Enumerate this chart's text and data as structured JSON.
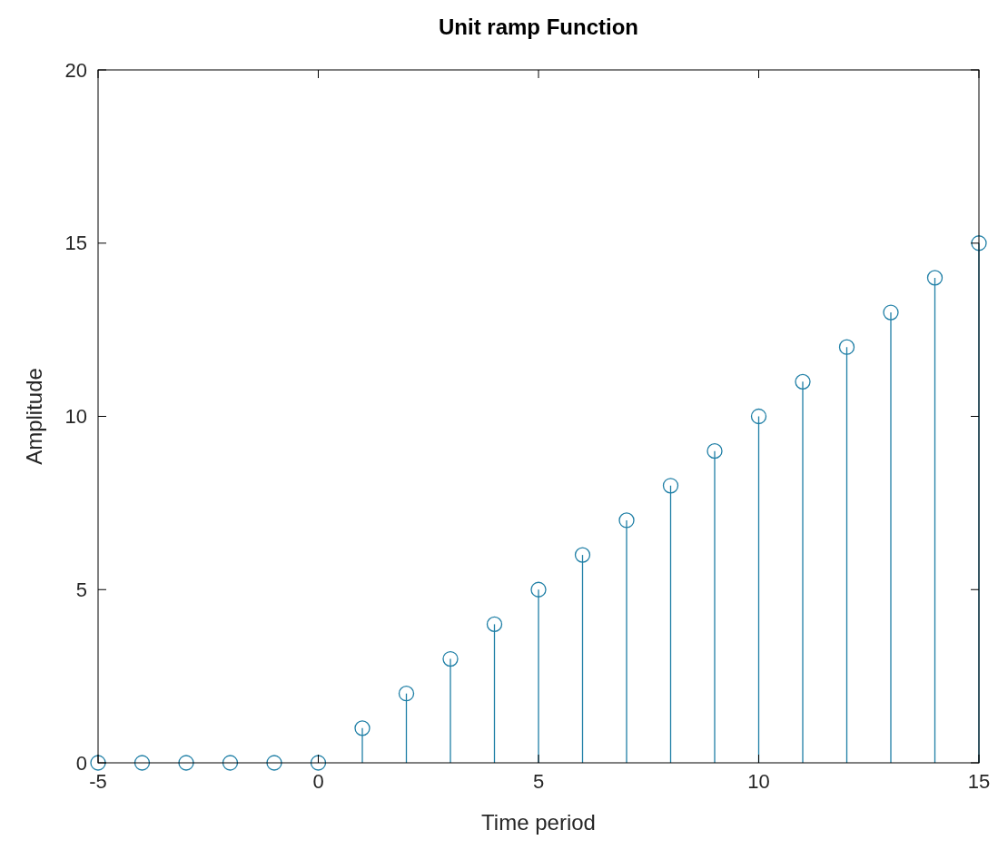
{
  "chart_data": {
    "type": "lollipop",
    "title": "Unit ramp Function",
    "xlabel": "Time period",
    "ylabel": "Amplitude",
    "x": [
      -5,
      -4,
      -3,
      -2,
      -1,
      0,
      1,
      2,
      3,
      4,
      5,
      6,
      7,
      8,
      9,
      10,
      11,
      12,
      13,
      14,
      15
    ],
    "values": [
      0,
      0,
      0,
      0,
      0,
      0,
      1,
      2,
      3,
      4,
      5,
      6,
      7,
      8,
      9,
      10,
      11,
      12,
      13,
      14,
      15
    ],
    "color": "#1f7fa6",
    "marker": "circle",
    "xlim": [
      -5,
      15
    ],
    "ylim": [
      0,
      20
    ],
    "xticks": [
      -5,
      0,
      5,
      10,
      15
    ],
    "yticks": [
      0,
      5,
      10,
      15,
      20
    ]
  }
}
